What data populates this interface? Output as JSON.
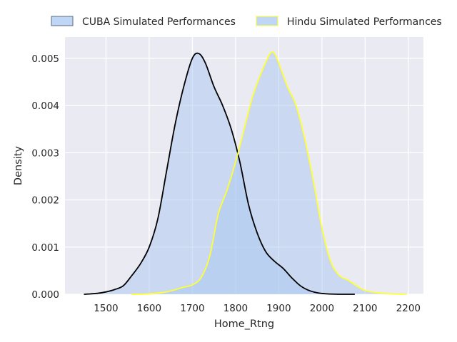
{
  "chart_data": {
    "type": "area",
    "title": "",
    "xlabel": "Home_Rtng",
    "ylabel": "Density",
    "xlim": [
      1405,
      2235
    ],
    "ylim": [
      0,
      0.00545
    ],
    "x_ticks": [
      1500,
      1600,
      1700,
      1800,
      1900,
      2000,
      2100,
      2200
    ],
    "y_ticks": [
      0.0,
      0.001,
      0.002,
      0.003,
      0.004,
      0.005
    ],
    "y_tick_labels": [
      "0.000",
      "0.001",
      "0.002",
      "0.003",
      "0.004",
      "0.005"
    ],
    "grid": true,
    "legend_position": "top-center",
    "colors": {
      "background": "#eaeaf2",
      "grid": "#ffffff",
      "fill": "#a9c8f0",
      "fill_opacity": 0.5,
      "legend_patch_edge": "#5a6b88",
      "text": "#262626"
    },
    "series": [
      {
        "name": "CUBA Simulated Performances",
        "line_color": "#000000",
        "x": [
          1450,
          1480,
          1500,
          1520,
          1540,
          1560,
          1580,
          1600,
          1620,
          1640,
          1660,
          1680,
          1700,
          1715,
          1730,
          1750,
          1770,
          1790,
          1810,
          1830,
          1850,
          1870,
          1890,
          1910,
          1930,
          1950,
          1970,
          1990,
          2010,
          2040,
          2075
        ],
        "y": [
          0.0,
          2e-05,
          5e-05,
          0.0001,
          0.00018,
          0.0004,
          0.00065,
          0.001,
          0.0016,
          0.0026,
          0.0036,
          0.0044,
          0.005,
          0.0051,
          0.0049,
          0.0044,
          0.004,
          0.0035,
          0.0028,
          0.0019,
          0.0013,
          0.0009,
          0.0007,
          0.00055,
          0.00035,
          0.00018,
          8e-05,
          3e-05,
          1e-05,
          0.0,
          0.0
        ]
      },
      {
        "name": "Hindu Simulated Performances",
        "line_color": "#ffff33",
        "x": [
          1560,
          1600,
          1640,
          1680,
          1700,
          1720,
          1740,
          1760,
          1780,
          1800,
          1820,
          1840,
          1860,
          1880,
          1890,
          1900,
          1920,
          1940,
          1960,
          1980,
          2000,
          2020,
          2040,
          2060,
          2080,
          2100,
          2130,
          2160,
          2195
        ],
        "y": [
          0.0,
          1e-05,
          5e-05,
          0.00015,
          0.0002,
          0.00035,
          0.0008,
          0.0017,
          0.0022,
          0.0028,
          0.0035,
          0.0042,
          0.0047,
          0.0051,
          0.0051,
          0.0049,
          0.0044,
          0.004,
          0.0033,
          0.0024,
          0.0014,
          0.0007,
          0.0004,
          0.0003,
          0.00018,
          8e-05,
          3e-05,
          1e-05,
          0.0
        ]
      }
    ]
  }
}
